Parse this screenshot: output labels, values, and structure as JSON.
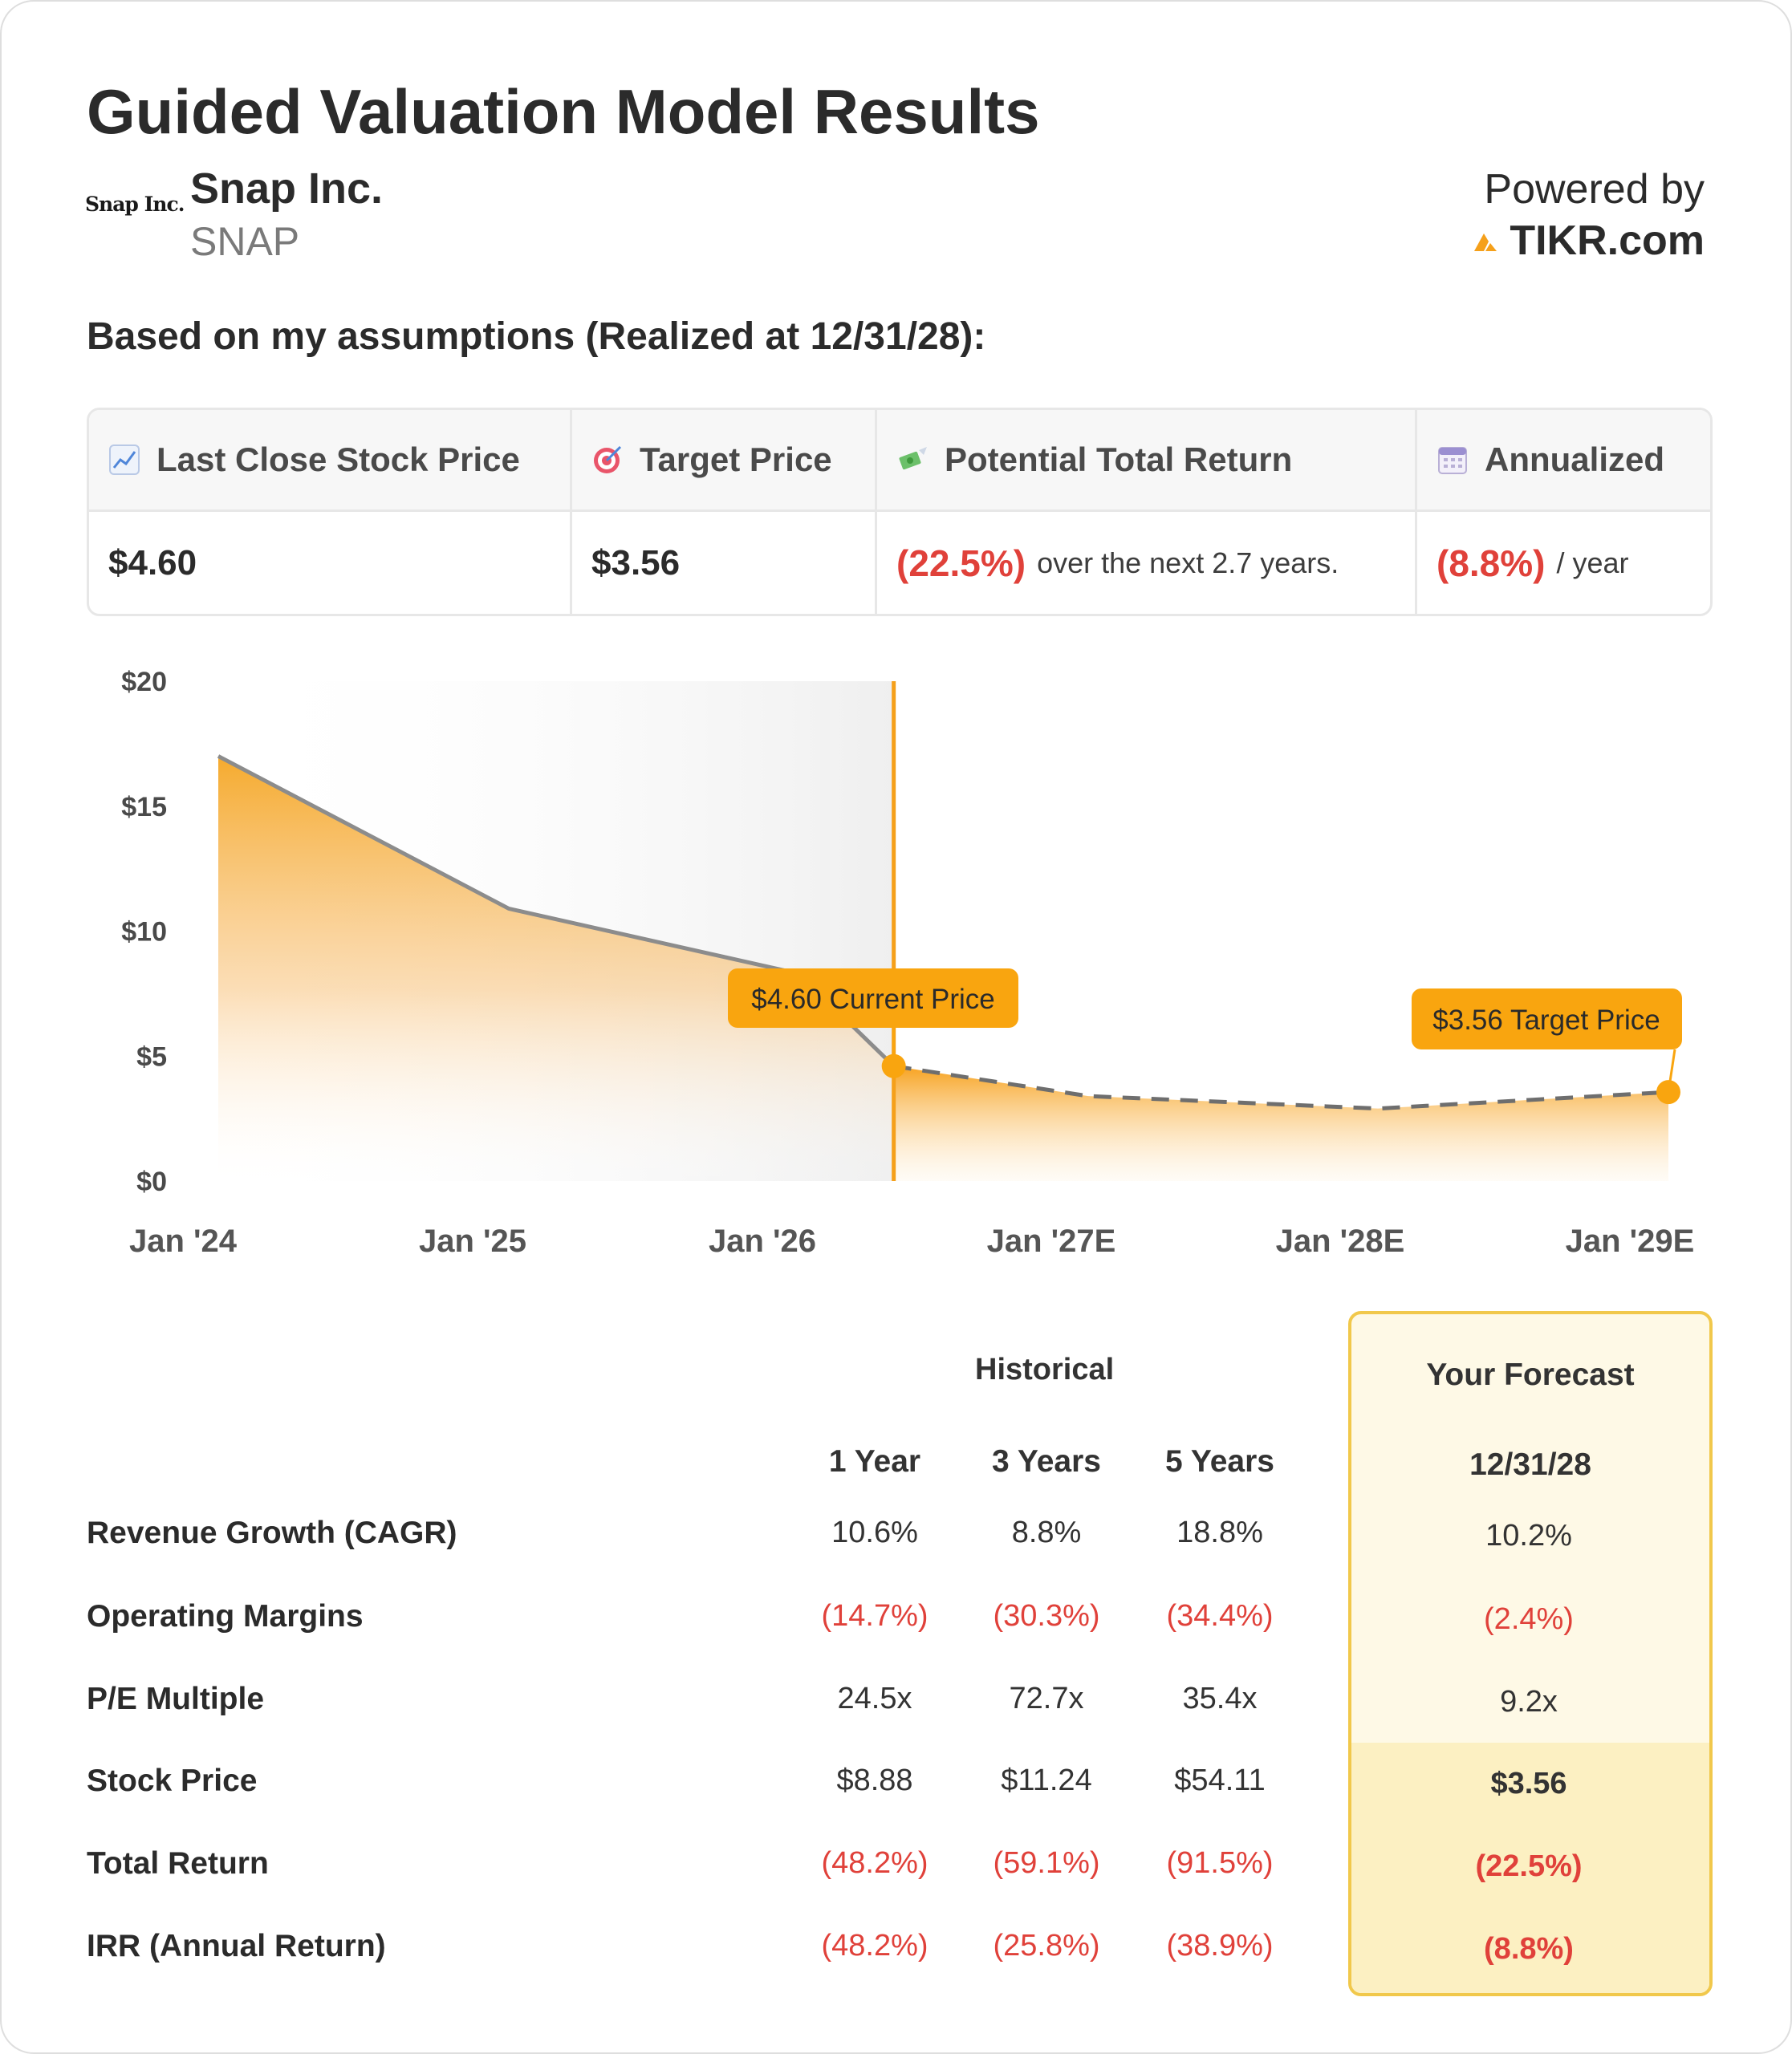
{
  "header": {
    "title": "Guided Valuation Model Results",
    "logo_text": "Snap Inc.",
    "company": "Snap Inc.",
    "ticker": "SNAP",
    "powered_by": "Powered by",
    "brand": "TIKR.com"
  },
  "assumptions_label": "Based on my assumptions (Realized at 12/31/28):",
  "summary": {
    "headers": [
      "Last Close Stock Price",
      "Target Price",
      "Potential Total Return",
      "Annualized"
    ],
    "icons": [
      "chart-increasing-icon",
      "target-icon",
      "money-with-wings-icon",
      "calendar-icon"
    ],
    "last_close": "$4.60",
    "target": "$3.56",
    "total_return": "(22.5%)",
    "total_return_suffix": "over the next 2.7 years.",
    "annualized": "(8.8%)",
    "annualized_suffix": "/ year"
  },
  "chart_data": {
    "type": "area",
    "x_tick_labels": [
      "Jan '24",
      "Jan '25",
      "Jan '26",
      "Jan '27E",
      "Jan '28E",
      "Jan '29E"
    ],
    "y_tick_labels": [
      "$0",
      "$5",
      "$10",
      "$15",
      "$20"
    ],
    "ylim": [
      0,
      20
    ],
    "historical": [
      {
        "date": "2024-01-01",
        "value": 17.0
      },
      {
        "date": "2025-01-01",
        "value": 10.9
      },
      {
        "date": "2026-01-01",
        "value": 8.3
      },
      {
        "date": "2026-05-01",
        "value": 4.6
      }
    ],
    "forecast": [
      {
        "date": "2026-05-01",
        "value": 4.6
      },
      {
        "date": "2027-01-01",
        "value": 3.4
      },
      {
        "date": "2028-01-01",
        "value": 2.9
      },
      {
        "date": "2029-01-01",
        "value": 3.56
      }
    ],
    "annotations": {
      "current": "$4.60 Current Price",
      "target": "$3.56 Target Price"
    },
    "colors": {
      "area": "#f5a623",
      "line": "#8c8c8c",
      "marker": "#f5a01a",
      "history_shade": "#f1f1f1"
    }
  },
  "table": {
    "historical_label": "Historical",
    "columns": [
      "1 Year",
      "3 Years",
      "5 Years"
    ],
    "forecast_label": "Your Forecast",
    "forecast_date": "12/31/28",
    "rows": [
      {
        "label": "Revenue Growth (CAGR)",
        "values": [
          "10.6%",
          "8.8%",
          "18.8%"
        ],
        "forecast": "10.2%"
      },
      {
        "label": "Operating Margins",
        "values": [
          "(14.7%)",
          "(30.3%)",
          "(34.4%)"
        ],
        "forecast": "(2.4%)"
      },
      {
        "label": "P/E Multiple",
        "values": [
          "24.5x",
          "72.7x",
          "35.4x"
        ],
        "forecast": "9.2x"
      },
      {
        "label": "Stock Price",
        "values": [
          "$8.88",
          "$11.24",
          "$54.11"
        ],
        "forecast": "$3.56"
      },
      {
        "label": "Total Return",
        "values": [
          "(48.2%)",
          "(59.1%)",
          "(91.5%)"
        ],
        "forecast": "(22.5%)"
      },
      {
        "label": "IRR (Annual Return)",
        "values": [
          "(48.2%)",
          "(25.8%)",
          "(38.9%)"
        ],
        "forecast": "(8.8%)"
      }
    ]
  }
}
